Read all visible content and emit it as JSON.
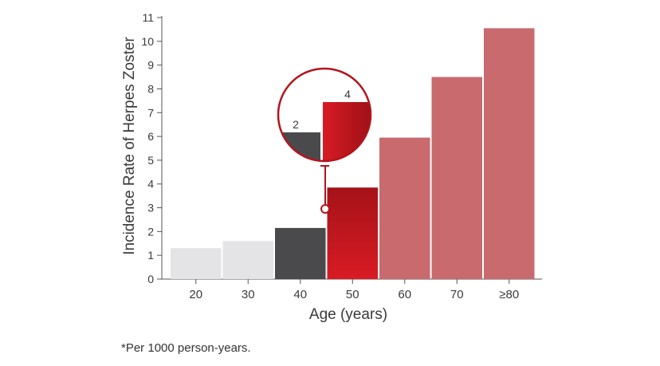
{
  "chart_data": {
    "type": "bar",
    "categories": [
      "20",
      "30",
      "40",
      "50",
      "60",
      "70",
      "≥80"
    ],
    "values": [
      1.3,
      1.6,
      2.15,
      3.85,
      5.95,
      8.5,
      10.55
    ],
    "xlabel": "Age (years)",
    "ylabel": "Incidence Rate of Herpes Zoster",
    "ylim": [
      0,
      11
    ],
    "yticks": [
      0,
      1,
      2,
      3,
      4,
      5,
      6,
      7,
      8,
      9,
      10,
      11
    ],
    "grid": false,
    "bar_colors": [
      "#e4e4e6",
      "#e4e4e6",
      "#4a4a4d",
      "#c8161e",
      "#c86a6e",
      "#c86a6e",
      "#c86a6e"
    ],
    "inset": {
      "description": "magnified comparison of ages 40 and 50",
      "labels": [
        "2",
        "4"
      ],
      "colors": [
        "#4a4a4d",
        "#c8161e"
      ]
    }
  },
  "footnote": "*Per 1000 person-years."
}
